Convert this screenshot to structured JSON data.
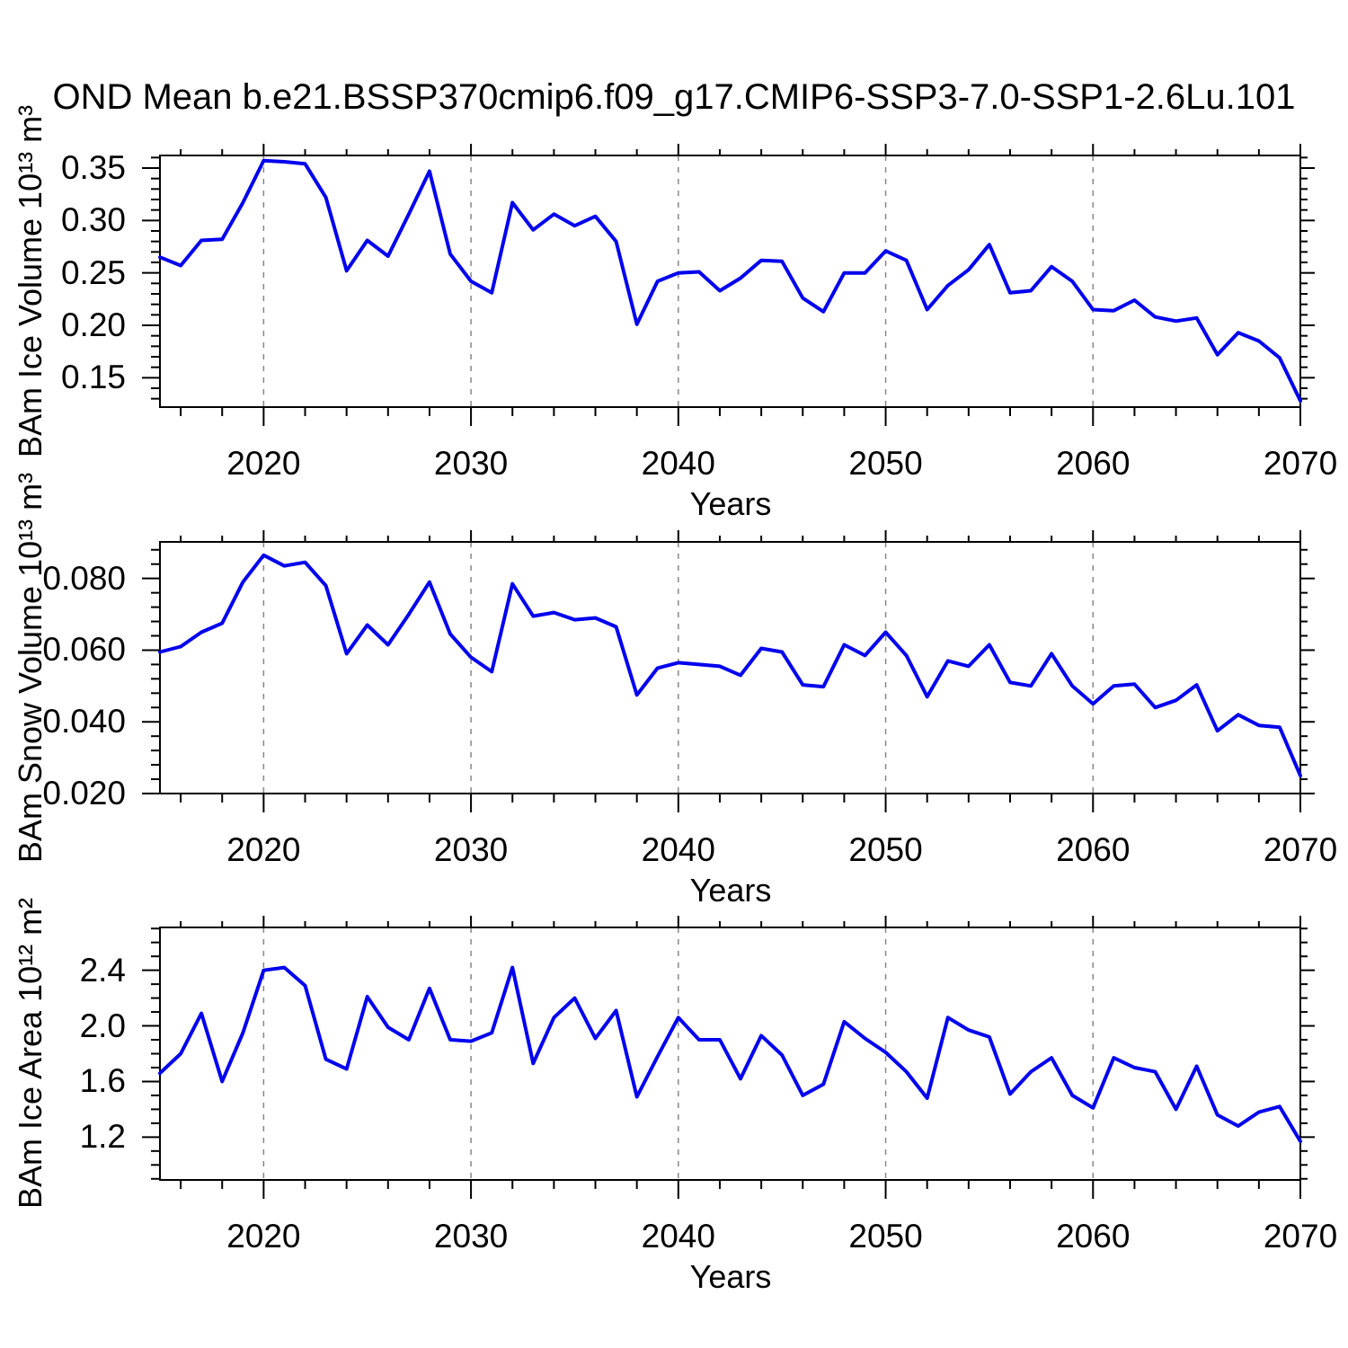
{
  "title": "OND Mean b.e21.BSSP370cmip6.f09_g17.CMIP6-SSP3-7.0-SSP1-2.6Lu.101",
  "line_color": "#0000EE",
  "grid_color": "#888888",
  "axis_color": "#000000",
  "chart_data": [
    {
      "type": "line",
      "title": "OND Mean b.e21.BSSP370cmip6.f09_g17.CMIP6-SSP3-7.0-SSP1-2.6Lu.101",
      "xlabel": "Years",
      "ylabel": "BAm Ice Volume 10¹³ m³",
      "xlim": [
        2015,
        2070
      ],
      "ylim": [
        0.122,
        0.362
      ],
      "xticks": [
        2020,
        2030,
        2040,
        2050,
        2060,
        2070
      ],
      "x_minor_step": 2,
      "grid_x": [
        2020,
        2030,
        2040,
        2050,
        2060
      ],
      "yticks": [
        0.15,
        0.2,
        0.25,
        0.3,
        0.35
      ],
      "ytick_labels": [
        "0.15",
        "0.20",
        "0.25",
        "0.30",
        "0.35"
      ],
      "y_minor_step": 0.01,
      "x": [
        2015,
        2016,
        2017,
        2018,
        2019,
        2020,
        2021,
        2022,
        2023,
        2024,
        2025,
        2026,
        2027,
        2028,
        2029,
        2030,
        2031,
        2032,
        2033,
        2034,
        2035,
        2036,
        2037,
        2038,
        2039,
        2040,
        2041,
        2042,
        2043,
        2044,
        2045,
        2046,
        2047,
        2048,
        2049,
        2050,
        2051,
        2052,
        2053,
        2054,
        2055,
        2056,
        2057,
        2058,
        2059,
        2060,
        2061,
        2062,
        2063,
        2064,
        2065,
        2066,
        2067,
        2068,
        2069,
        2070
      ],
      "y": [
        0.265,
        0.257,
        0.281,
        0.282,
        0.317,
        0.357,
        0.356,
        0.354,
        0.322,
        0.252,
        0.281,
        0.266,
        0.306,
        0.347,
        0.268,
        0.242,
        0.231,
        0.317,
        0.291,
        0.306,
        0.295,
        0.304,
        0.28,
        0.201,
        0.242,
        0.25,
        0.251,
        0.233,
        0.245,
        0.262,
        0.261,
        0.226,
        0.213,
        0.25,
        0.25,
        0.271,
        0.262,
        0.215,
        0.238,
        0.253,
        0.277,
        0.231,
        0.233,
        0.256,
        0.242,
        0.215,
        0.214,
        0.224,
        0.208,
        0.204,
        0.207,
        0.172,
        0.193,
        0.185,
        0.169,
        0.128
      ]
    },
    {
      "type": "line",
      "title": "",
      "xlabel": "Years",
      "ylabel": "BAm Snow Volume 10¹³ m³",
      "xlim": [
        2015,
        2070
      ],
      "ylim": [
        0.02,
        0.0902
      ],
      "xticks": [
        2020,
        2030,
        2040,
        2050,
        2060,
        2070
      ],
      "x_minor_step": 2,
      "grid_x": [
        2020,
        2030,
        2040,
        2050,
        2060
      ],
      "yticks": [
        0.02,
        0.04,
        0.06,
        0.08
      ],
      "ytick_labels": [
        "0.020",
        "0.040",
        "0.060",
        "0.080"
      ],
      "y_minor_step": 0.004,
      "x": [
        2015,
        2016,
        2017,
        2018,
        2019,
        2020,
        2021,
        2022,
        2023,
        2024,
        2025,
        2026,
        2027,
        2028,
        2029,
        2030,
        2031,
        2032,
        2033,
        2034,
        2035,
        2036,
        2037,
        2038,
        2039,
        2040,
        2041,
        2042,
        2043,
        2044,
        2045,
        2046,
        2047,
        2048,
        2049,
        2050,
        2051,
        2052,
        2053,
        2054,
        2055,
        2056,
        2057,
        2058,
        2059,
        2060,
        2061,
        2062,
        2063,
        2064,
        2065,
        2066,
        2067,
        2068,
        2069,
        2070
      ],
      "y": [
        0.0595,
        0.061,
        0.065,
        0.0675,
        0.079,
        0.0865,
        0.0835,
        0.0845,
        0.078,
        0.059,
        0.067,
        0.0615,
        0.07,
        0.079,
        0.0645,
        0.058,
        0.054,
        0.0785,
        0.0695,
        0.0705,
        0.0685,
        0.069,
        0.0665,
        0.0475,
        0.055,
        0.0565,
        0.056,
        0.0555,
        0.053,
        0.0605,
        0.0595,
        0.0503,
        0.0498,
        0.0615,
        0.0585,
        0.065,
        0.0585,
        0.047,
        0.057,
        0.0555,
        0.0615,
        0.051,
        0.05,
        0.059,
        0.05,
        0.045,
        0.05,
        0.0505,
        0.044,
        0.046,
        0.0503,
        0.0375,
        0.042,
        0.039,
        0.0385,
        0.025
      ]
    },
    {
      "type": "line",
      "title": "",
      "xlabel": "Years",
      "ylabel": "BAm Ice Area 10¹² m²",
      "xlim": [
        2015,
        2070
      ],
      "ylim": [
        0.892,
        2.708
      ],
      "xticks": [
        2020,
        2030,
        2040,
        2050,
        2060,
        2070
      ],
      "x_minor_step": 2,
      "grid_x": [
        2020,
        2030,
        2040,
        2050,
        2060
      ],
      "yticks": [
        1.2,
        1.6,
        2.0,
        2.4
      ],
      "ytick_labels": [
        "1.2",
        "1.6",
        "2.0",
        "2.4"
      ],
      "y_minor_step": 0.1,
      "x": [
        2015,
        2016,
        2017,
        2018,
        2019,
        2020,
        2021,
        2022,
        2023,
        2024,
        2025,
        2026,
        2027,
        2028,
        2029,
        2030,
        2031,
        2032,
        2033,
        2034,
        2035,
        2036,
        2037,
        2038,
        2039,
        2040,
        2041,
        2042,
        2043,
        2044,
        2045,
        2046,
        2047,
        2048,
        2049,
        2050,
        2051,
        2052,
        2053,
        2054,
        2055,
        2056,
        2057,
        2058,
        2059,
        2060,
        2061,
        2062,
        2063,
        2064,
        2065,
        2066,
        2067,
        2068,
        2069,
        2070
      ],
      "y": [
        1.66,
        1.8,
        2.09,
        1.6,
        1.95,
        2.4,
        2.42,
        2.29,
        1.76,
        1.69,
        2.21,
        1.99,
        1.9,
        2.27,
        1.9,
        1.89,
        1.95,
        2.42,
        1.73,
        2.06,
        2.2,
        1.91,
        2.11,
        1.49,
        1.78,
        2.06,
        1.9,
        1.9,
        1.62,
        1.93,
        1.79,
        1.5,
        1.58,
        2.03,
        1.91,
        1.81,
        1.67,
        1.48,
        2.06,
        1.97,
        1.92,
        1.51,
        1.67,
        1.77,
        1.5,
        1.41,
        1.77,
        1.7,
        1.67,
        1.4,
        1.71,
        1.36,
        1.28,
        1.38,
        1.42,
        1.17
      ]
    }
  ]
}
